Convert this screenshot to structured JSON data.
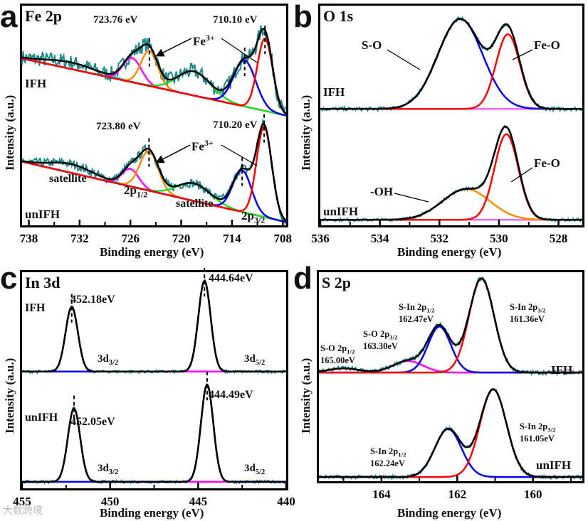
{
  "watermark": "大数跨境",
  "axes": {
    "xlabel": "Binding energy (eV)",
    "ylabel": "Intensity (a.u.)"
  },
  "chart_data": [
    {
      "type": "line",
      "letter": "a",
      "title": "Fe 2p",
      "xlabel": "Binding energy (eV)",
      "ylabel": "Intensity (a.u.)",
      "xlim": [
        738.8,
        707.6
      ],
      "ylim": [
        0,
        10
      ],
      "ticks_major": [
        738,
        732,
        726,
        720,
        714,
        708
      ],
      "ticks_minor": [
        735,
        729,
        723,
        717,
        711
      ],
      "series": [
        {
          "name": "IFH",
          "bg": [
            7.6,
            5.0
          ],
          "noise": 0.35,
          "components": [
            {
              "color": "#00e5e5",
              "center": 733,
              "amp": 0.3,
              "sigma": 3
            },
            {
              "color": "#ff00ff",
              "center": 725.8,
              "amp": 1.1,
              "sigma": 1.1
            },
            {
              "color": "#ff8c00",
              "center": 723.76,
              "amp": 1.6,
              "sigma": 1.0
            },
            {
              "color": "#22dd22",
              "center": 718.5,
              "amp": 1.1,
              "sigma": 2.0
            },
            {
              "color": "#0000ff",
              "center": 712.5,
              "amp": 2.1,
              "sigma": 1.3
            },
            {
              "color": "#ff0000",
              "center": 710.1,
              "amp": 3.3,
              "sigma": 0.9
            }
          ]
        },
        {
          "name": "unIFH",
          "bg": [
            2.9,
            0.15
          ],
          "noise": 0.2,
          "components": [
            {
              "color": "#00e5e5",
              "center": 733,
              "amp": 0.4,
              "sigma": 2.5
            },
            {
              "color": "#ff00ff",
              "center": 726,
              "amp": 0.8,
              "sigma": 1.0
            },
            {
              "color": "#ff8c00",
              "center": 723.8,
              "amp": 1.8,
              "sigma": 1.1
            },
            {
              "color": "#22dd22",
              "center": 718.5,
              "amp": 0.8,
              "sigma": 2.0
            },
            {
              "color": "#0000ff",
              "center": 712.8,
              "amp": 1.9,
              "sigma": 1.1
            },
            {
              "color": "#ff0000",
              "center": 710.2,
              "amp": 4.1,
              "sigma": 0.9
            }
          ]
        }
      ],
      "annotations": {
        "peak1_ifh": "723.76 eV",
        "peak2_ifh": "710.10 eV",
        "fe3_ifh": "Fe",
        "fe3_sup": "3+",
        "peak1_un": "723.80 eV",
        "peak2_un": "710.20 eV",
        "fe3_un": "Fe",
        "sat1": "satellite",
        "sat2": "satellite",
        "p12": "2p",
        "p12_sub": "1/2",
        "p32": "2p",
        "p32_sub": "3/2",
        "ifh": "IFH",
        "unifh": "unIFH"
      }
    },
    {
      "type": "line",
      "letter": "b",
      "title": "O 1s",
      "xlabel": "Binding energy (eV)",
      "ylabel": "Intensity (a.u.)",
      "xlim": [
        536,
        527.2
      ],
      "ylim": [
        0,
        10
      ],
      "ticks_major": [
        536,
        534,
        532,
        530,
        528
      ],
      "ticks_minor": [
        535,
        533,
        531,
        529
      ],
      "series": [
        {
          "name": "IFH",
          "bg": [
            5.3,
            5.3
          ],
          "noise": 0.08,
          "components": [
            {
              "color": "#ff66ff",
              "center": 531,
              "amp": 0.0,
              "sigma": 1
            },
            {
              "color": "#0000ff",
              "center": 531.3,
              "amp": 4.1,
              "sigma": 0.75
            },
            {
              "color": "#ff0000",
              "center": 529.7,
              "amp": 3.4,
              "sigma": 0.4
            }
          ]
        },
        {
          "name": "unIFH",
          "bg": [
            0.25,
            0.25
          ],
          "noise": 0.06,
          "components": [
            {
              "color": "#ff66ff",
              "center": 531,
              "amp": 0.0,
              "sigma": 1
            },
            {
              "color": "#ff8c00",
              "center": 531.1,
              "amp": 1.4,
              "sigma": 0.8
            },
            {
              "color": "#ff0000",
              "center": 529.75,
              "amp": 3.9,
              "sigma": 0.4
            }
          ]
        }
      ],
      "annotations": {
        "so": "S-O",
        "feo1": "Fe-O",
        "feo2": "Fe-O",
        "oh": "-OH",
        "ifh": "IFH",
        "unifh": "unIFH"
      }
    },
    {
      "type": "line",
      "letter": "c",
      "title": "In 3d",
      "xlabel": "Binding energy (eV)",
      "ylabel": "Intensity (a.u.)",
      "xlim": [
        455,
        440
      ],
      "ylim": [
        0,
        10
      ],
      "ticks_major": [
        455,
        450,
        445,
        440
      ],
      "ticks_minor": [
        452.5,
        447.5,
        442.5
      ],
      "series": [
        {
          "name": "IFH",
          "bg": [
            5.4,
            5.4
          ],
          "noise": 0.06,
          "components": [
            {
              "color": "#ff00ff",
              "center": 452.18,
              "amp": 3.0,
              "sigma": 0.35
            },
            {
              "color": "#0000ff",
              "center": 444.64,
              "amp": 4.2,
              "sigma": 0.35
            }
          ]
        },
        {
          "name": "unIFH",
          "bg": [
            0.3,
            0.3
          ],
          "noise": 0.06,
          "components": [
            {
              "color": "#ff00ff",
              "center": 452.05,
              "amp": 3.4,
              "sigma": 0.35
            },
            {
              "color": "#0000ff",
              "center": 444.49,
              "amp": 4.5,
              "sigma": 0.35
            }
          ]
        }
      ],
      "annotations": {
        "p1_ifh": "452.18eV",
        "p2_ifh": "444.64eV",
        "p1_un": "452.05eV",
        "p2_un": "444.49eV",
        "d32": "3d",
        "d32_sub": "3/2",
        "d52": "3d",
        "d52_sub": "5/2",
        "ifh": "IFH",
        "unifh": "unIFH"
      }
    },
    {
      "type": "line",
      "letter": "d",
      "title": "S 2p",
      "xlabel": "Binding energy (eV)",
      "ylabel": "Intensity (a.u.)",
      "xlim": [
        165.65,
        158.7
      ],
      "ylim": [
        0,
        10
      ],
      "ticks_major": [
        164,
        162,
        160
      ],
      "ticks_minor": [
        165,
        163,
        161,
        159
      ],
      "series": [
        {
          "name": "IFH",
          "bg": [
            5.2,
            5.2
          ],
          "noise": 0.1,
          "components": [
            {
              "color": "#22dd22",
              "center": 165.0,
              "amp": 0.2,
              "sigma": 0.4
            },
            {
              "color": "#ff00ff",
              "center": 163.3,
              "amp": 0.55,
              "sigma": 0.4
            },
            {
              "color": "#0000ff",
              "center": 162.47,
              "amp": 2.2,
              "sigma": 0.3
            },
            {
              "color": "#ff0000",
              "center": 161.36,
              "amp": 4.5,
              "sigma": 0.33
            }
          ]
        },
        {
          "name": "unIFH",
          "bg": [
            0.2,
            0.2
          ],
          "noise": 0.08,
          "components": [
            {
              "color": "#0000ff",
              "center": 162.24,
              "amp": 2.3,
              "sigma": 0.35
            },
            {
              "color": "#ff0000",
              "center": 161.05,
              "amp": 4.2,
              "sigma": 0.35
            }
          ]
        }
      ],
      "annotations": {
        "so12": "S-O 2p",
        "so12_sub": "1/2",
        "so12_e": "165.00eV",
        "so32": "S-O 2p",
        "so32_sub": "3/2",
        "so32_e": "163.30eV",
        "sin12": "S-In 2p",
        "sin12_sub": "1/2",
        "sin12_e": "162.47eV",
        "sin32": "S-In 2p",
        "sin32_sub": "3/2",
        "sin32_e": "161.36eV",
        "un12": "S-In 2p",
        "un12_sub": "1/2",
        "un12_e": "162.24eV",
        "un32": "S-In 2p",
        "un32_sub": "3/2",
        "un32_e": "161.05eV",
        "ifh": "IFH",
        "unifh": "unIFH"
      }
    }
  ]
}
